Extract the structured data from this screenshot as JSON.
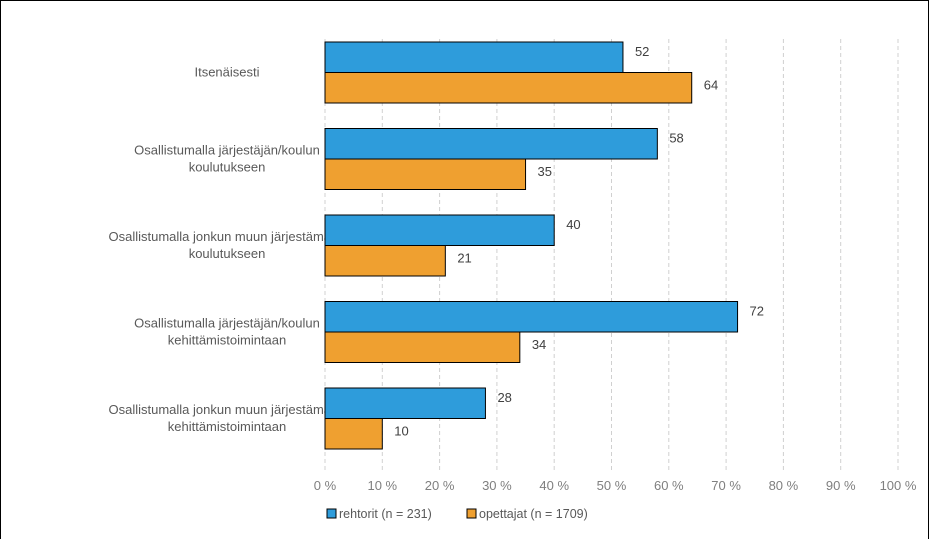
{
  "chart_data": {
    "type": "bar",
    "orientation": "horizontal",
    "categories": [
      [
        "Itsenäisesti"
      ],
      [
        "Osallistumalla järjestäjän/koulun",
        "koulutukseen"
      ],
      [
        "Osallistumalla jonkun muun järjestämään",
        "koulutukseen"
      ],
      [
        "Osallistumalla järjestäjän/koulun",
        "kehittämistoimintaan"
      ],
      [
        "Osallistumalla jonkun muun järjestämään",
        "kehittämistoimintaan"
      ]
    ],
    "series": [
      {
        "name": "rehtorit (n = 231)",
        "color": "#2e9cdb",
        "values": [
          52,
          58,
          40,
          72,
          28
        ]
      },
      {
        "name": "opettajat (n = 1709)",
        "color": "#efa030",
        "values": [
          64,
          35,
          21,
          34,
          10
        ]
      }
    ],
    "xlim": [
      0,
      100
    ],
    "x_ticks": [
      "0 %",
      "10 %",
      "20 %",
      "30 %",
      "40 %",
      "50 %",
      "60 %",
      "70 %",
      "80 %",
      "90 %",
      "100 %"
    ],
    "grid": "vertical-dashed",
    "legend_position": "bottom-left",
    "title": "",
    "xlabel": "",
    "ylabel": ""
  }
}
